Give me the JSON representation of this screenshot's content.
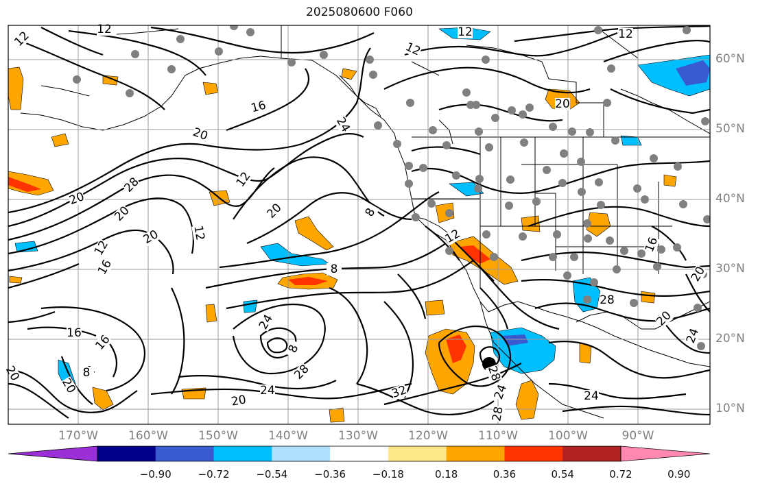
{
  "title": "2025080600 F060",
  "map": {
    "projection": "equirectangular",
    "lon_range": [
      -180,
      -80
    ],
    "lat_range": [
      8,
      65
    ],
    "grid": true,
    "contour_field_labels": [
      "12",
      "12",
      "12",
      "12",
      "12",
      "16",
      "20",
      "24",
      "28",
      "20",
      "20",
      "12",
      "8",
      "20",
      "12",
      "8",
      "20",
      "12",
      "16",
      "12",
      "16",
      "16",
      "12",
      "8",
      "28",
      "20",
      "24",
      "28",
      "24",
      "28",
      "32",
      "24",
      "28",
      "20",
      "20",
      "24",
      "20",
      "16",
      "24",
      "20",
      "20",
      "8"
    ],
    "stations_present": true,
    "storm_marker_present": true
  },
  "lat_ticks": [
    "60°N",
    "50°N",
    "40°N",
    "30°N",
    "20°N",
    "10°N"
  ],
  "lon_ticks": [
    "170°W",
    "160°W",
    "150°W",
    "140°W",
    "130°W",
    "120°W",
    "110°W",
    "100°W",
    "90°W"
  ],
  "colorbar": {
    "colors": [
      "#9b30d9",
      "#00008b",
      "#3a5bd0",
      "#00bfff",
      "#aee2ff",
      "#ffffff",
      "#ffe88a",
      "#ffa500",
      "#ff3300",
      "#b22222",
      "#ff88b0"
    ],
    "tick_labels": [
      "−0.90",
      "−0.72",
      "−0.54",
      "−0.36",
      "−0.18",
      "0.18",
      "0.36",
      "0.54",
      "0.72",
      "0.90"
    ],
    "extend": "both"
  }
}
